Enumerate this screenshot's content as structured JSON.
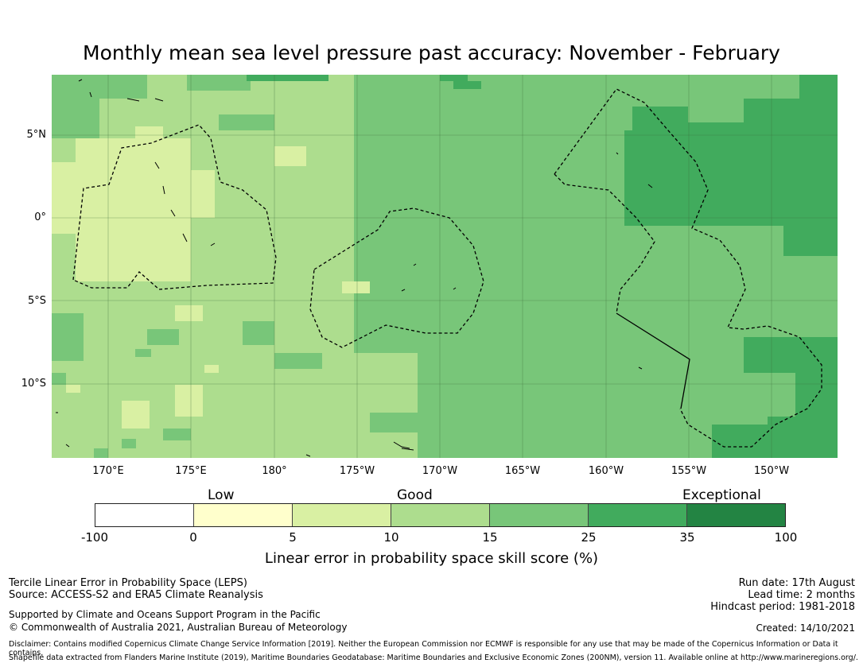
{
  "title": "Monthly mean sea level pressure past accuracy: November - February",
  "map": {
    "lat_labels": [
      "5°N",
      "0°",
      "5°S",
      "10°S"
    ],
    "lon_labels": [
      "170°E",
      "175°E",
      "180°",
      "175°W",
      "170°W",
      "165°W",
      "160°W",
      "155°W",
      "150°W"
    ]
  },
  "legend": {
    "category_labels": [
      "Low",
      "Good",
      "Exceptional"
    ],
    "tick_labels": [
      "-100",
      "0",
      "5",
      "10",
      "15",
      "25",
      "35",
      "100"
    ],
    "colors": [
      "#ffffff",
      "#ffffcc",
      "#d9f0a3",
      "#addd8e",
      "#78c679",
      "#41ab5d",
      "#238443"
    ],
    "title": "Linear error in probability space skill score (%)"
  },
  "footer": {
    "method": "Tercile Linear Error in Probability Space (LEPS)",
    "source": "Source: ACCESS-S2 and ERA5 Climate Reanalysis",
    "support": "Supported by Climate and Oceans Support Program in the Pacific",
    "copyright": "© Commonwealth of Australia 2021, Australian Bureau of Meteorology",
    "run_date": "Run date: 17th August",
    "lead_time": "Lead time: 2 months",
    "hindcast": "Hindcast period: 1981-2018",
    "created": "Created: 14/10/2021",
    "disclaimer": "Disclaimer: Contains modified Copernicus Climate Change Service Information [2019]. Neither the European Commission nor ECMWF is responsible for any use that may be made of the Copernicus Information or Data it contains.",
    "shapefile": "Shapefile data extracted from Flanders Marine Institute (2019), Maritime Boundaries Geodatabase: Maritime Boundaries and Exclusive Economic Zones (200NM), version 11. Available online at http://www.marineregions.org/."
  }
}
